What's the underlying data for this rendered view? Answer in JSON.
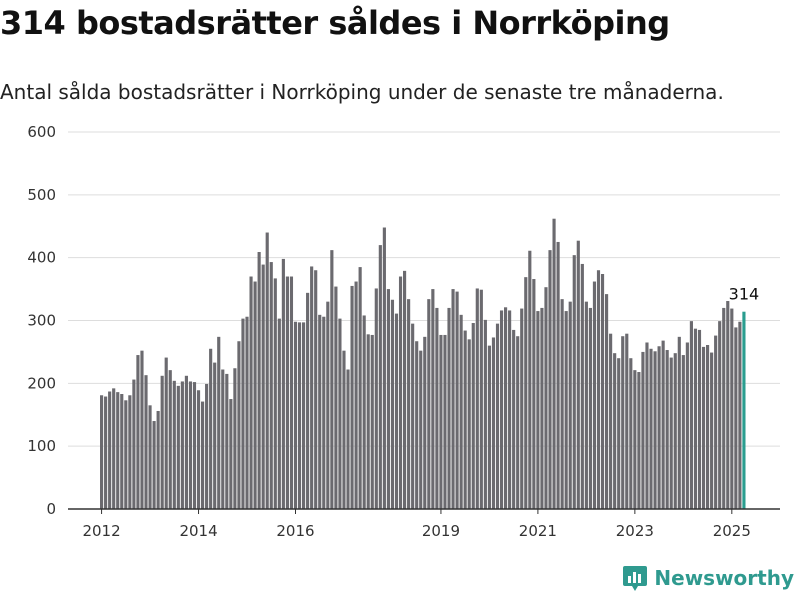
{
  "title": "314 bostadsrätter såldes i Norrköping",
  "subtitle": "Antal sålda bostadsrätter i Norrköping under de senaste tre månaderna.",
  "brand": {
    "name": "Newsworthy",
    "color": "#2f9a8f"
  },
  "colors": {
    "bar": "#6b6a6f",
    "highlight": "#2a9d8f",
    "grid": "#dddddd",
    "axis": "#333333"
  },
  "chart_data": {
    "type": "bar",
    "title": "314 bostadsrätter såldes i Norrköping",
    "subtitle": "Antal sålda bostadsrätter i Norrköping under de senaste tre månaderna.",
    "ylim": [
      0,
      600
    ],
    "y_ticks": [
      0,
      100,
      200,
      300,
      400,
      500,
      600
    ],
    "x_tick_labels": [
      "2012",
      "2014",
      "2016",
      "2019",
      "2021",
      "2023",
      "2025"
    ],
    "x_tick_dates": [
      "2012-01",
      "2014-01",
      "2016-01",
      "2019-01",
      "2021-01",
      "2023-01",
      "2025-01"
    ],
    "start_month": "2012-01",
    "end_month": "2025-04",
    "grid": true,
    "highlight_last": true,
    "last_value_label": "314",
    "values": [
      181,
      179,
      187,
      192,
      186,
      183,
      173,
      181,
      206,
      245,
      252,
      213,
      165,
      140,
      156,
      212,
      241,
      221,
      204,
      196,
      203,
      212,
      203,
      202,
      189,
      171,
      199,
      255,
      233,
      274,
      222,
      215,
      175,
      224,
      267,
      303,
      306,
      370,
      362,
      409,
      389,
      440,
      393,
      367,
      303,
      398,
      370,
      370,
      298,
      297,
      297,
      344,
      386,
      380,
      309,
      306,
      330,
      412,
      354,
      303,
      252,
      222,
      355,
      362,
      385,
      308,
      278,
      277,
      351,
      420,
      448,
      350,
      333,
      311,
      370,
      379,
      334,
      295,
      267,
      252,
      274,
      334,
      350,
      320,
      277,
      277,
      320,
      350,
      346,
      309,
      284,
      270,
      296,
      351,
      349,
      301,
      260,
      273,
      295,
      316,
      321,
      316,
      285,
      275,
      319,
      369,
      411,
      366,
      315,
      320,
      353,
      412,
      462,
      425,
      334,
      315,
      330,
      404,
      427,
      390,
      330,
      320,
      362,
      380,
      374,
      342,
      279,
      248,
      240,
      275,
      279,
      240,
      221,
      218,
      250,
      265,
      255,
      251,
      259,
      268,
      253,
      241,
      248,
      274,
      245,
      265,
      299,
      287,
      285,
      258,
      261,
      249,
      276,
      299,
      320,
      331,
      319,
      289,
      298,
      314
    ]
  }
}
